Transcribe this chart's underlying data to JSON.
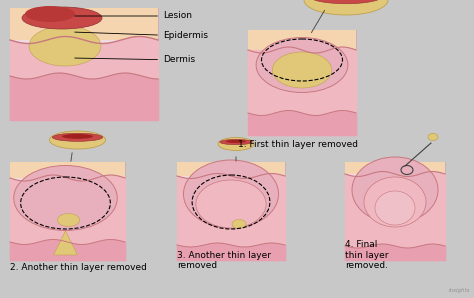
{
  "bg_color": "#c8c8c8",
  "panel_bg": "#f0dce0",
  "epidermis_color": "#f5d5b0",
  "dermis_color": "#f0b8c0",
  "deep_dermis": "#e8a0b0",
  "lesion_red": "#c84848",
  "lesion_yellow": "#e0c878",
  "pink_bowl": "#e8b0bc",
  "dark_pink": "#c87880",
  "labels": [
    "Lesion",
    "Epidermis",
    "Dermis"
  ],
  "step_labels": [
    "1. First thin layer removed",
    "2. Another thin layer removed",
    "3. Another thin layer\nremoved",
    "4. Final\nthin layer\nremoved."
  ],
  "watermark": "Insights"
}
